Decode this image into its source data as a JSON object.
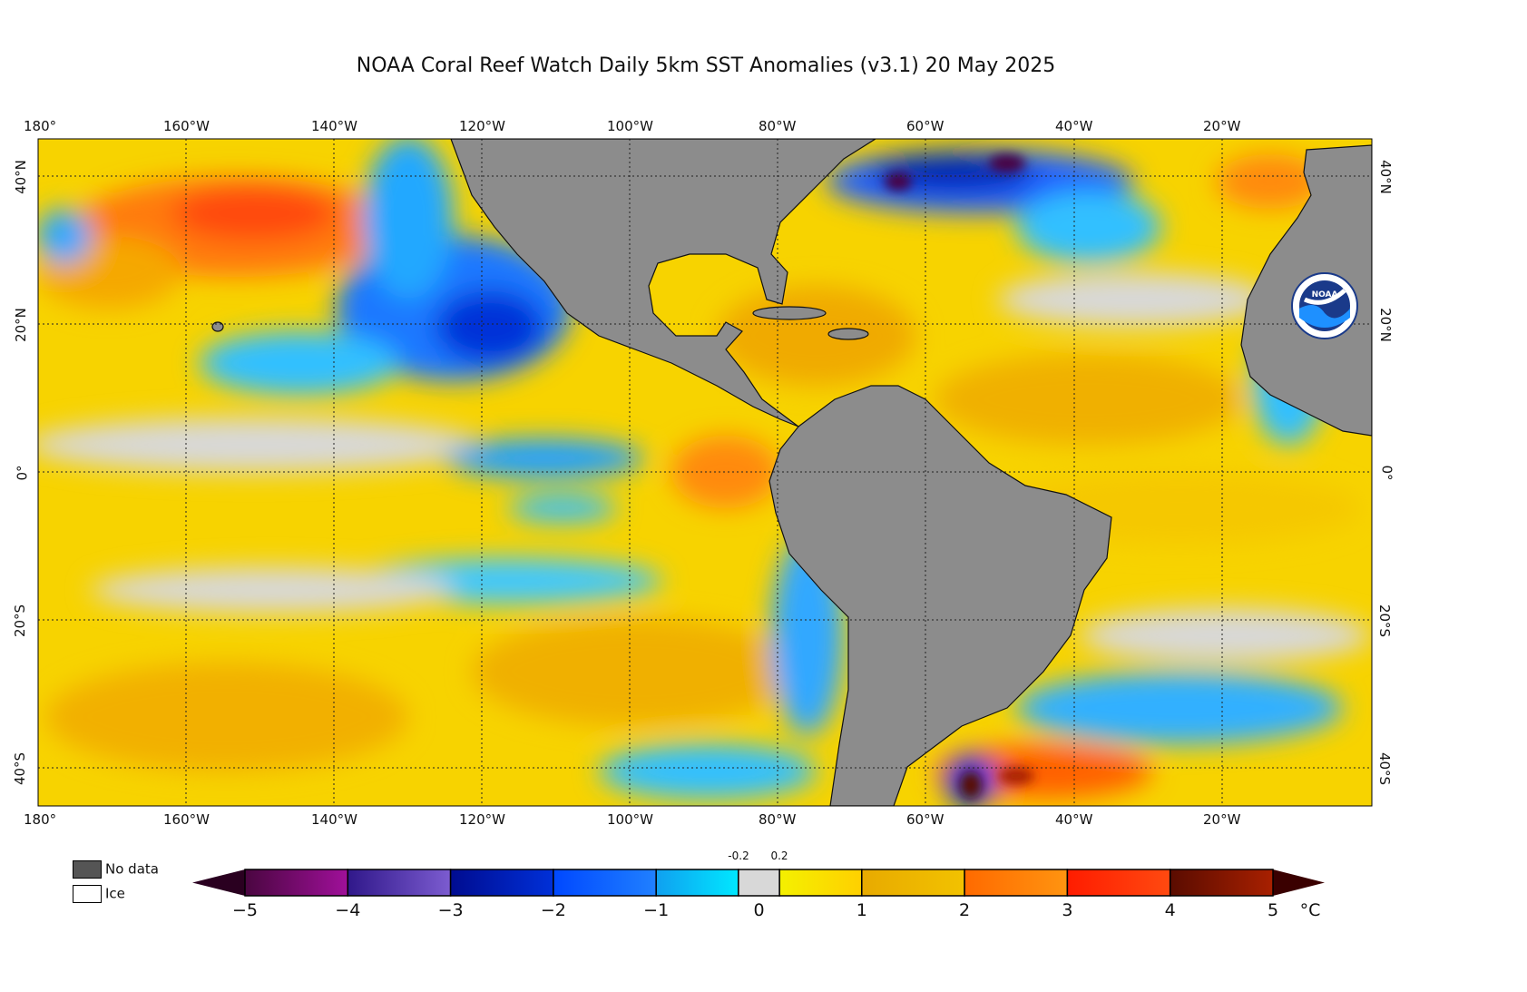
{
  "title": "NOAA Coral Reef Watch Daily 5km SST Anomalies  (v3.1)   20 May 2025",
  "lon_labels": [
    "180°",
    "160°W",
    "140°W",
    "120°W",
    "100°W",
    "80°W",
    "60°W",
    "40°W",
    "20°W"
  ],
  "lat_labels": [
    "40°N",
    "20°N",
    "0°",
    "20°S",
    "40°S"
  ],
  "legend": {
    "no_data": "No data",
    "ice": "Ice",
    "no_data_color": "#555555",
    "ice_color": "#ffffff"
  },
  "colorbar": {
    "ticks": [
      "−5",
      "−4",
      "−3",
      "−2",
      "−1",
      "0",
      "1",
      "2",
      "3",
      "4",
      "5"
    ],
    "small_ticks": [
      "-0.2",
      "0.2"
    ],
    "unit": "°C",
    "under_color": "#2a0020",
    "over_color": "#3a0000",
    "bins": [
      {
        "from": -5,
        "to": -4,
        "c1": "#4a0640",
        "c2": "#a0109a"
      },
      {
        "from": -4,
        "to": -3,
        "c1": "#30188a",
        "c2": "#7c5cd0"
      },
      {
        "from": -3,
        "to": -2,
        "c1": "#000c90",
        "c2": "#0030d8"
      },
      {
        "from": -2,
        "to": -1,
        "c1": "#0048ff",
        "c2": "#2080ff"
      },
      {
        "from": -1,
        "to": -0.2,
        "c1": "#10a0f0",
        "c2": "#00e8ff"
      },
      {
        "from": -0.2,
        "to": 0.2,
        "c1": "#d8d8d8",
        "c2": "#d8d8d8"
      },
      {
        "from": 0.2,
        "to": 1,
        "c1": "#f4f000",
        "c2": "#ffd000"
      },
      {
        "from": 1,
        "to": 2,
        "c1": "#e8aa00",
        "c2": "#f2c200"
      },
      {
        "from": 2,
        "to": 3,
        "c1": "#ff6a00",
        "c2": "#ff9410"
      },
      {
        "from": 3,
        "to": 4,
        "c1": "#ff1c00",
        "c2": "#ff4a10"
      },
      {
        "from": 4,
        "to": 5,
        "c1": "#5a0c00",
        "c2": "#a82000"
      }
    ]
  },
  "land_color": "#8c8c8c",
  "logo_text": "NOAA"
}
